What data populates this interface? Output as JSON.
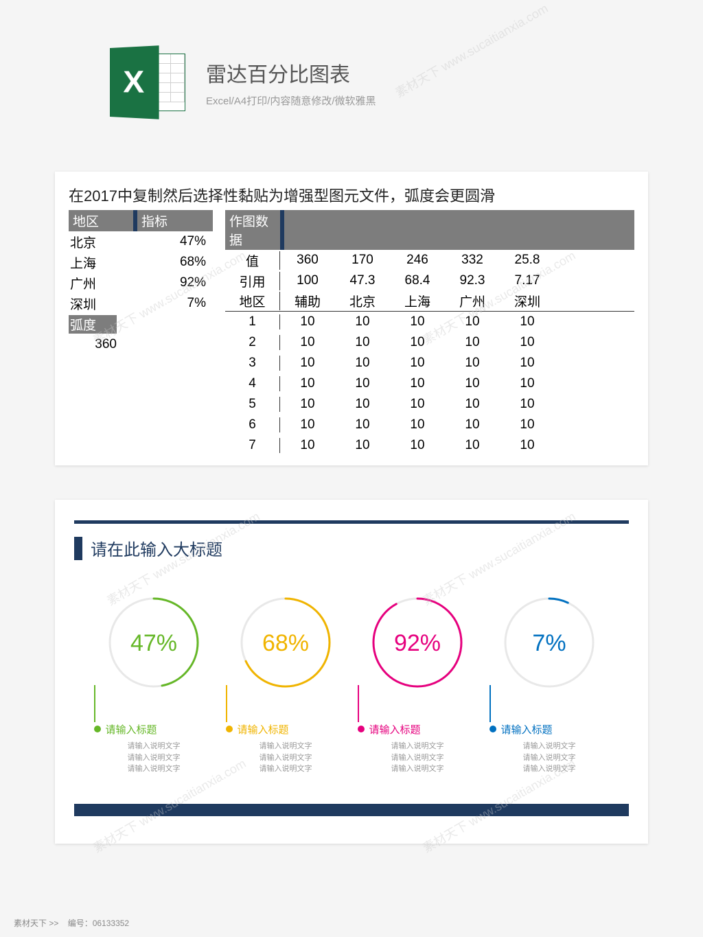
{
  "header": {
    "icon_letter": "X",
    "title": "雷达百分比图表",
    "subtitle": "Excel/A4打印/内容随意修改/微软雅黑"
  },
  "note": "在2017中复制然后选择性黏贴为增强型图元文件，弧度会更圆滑",
  "table_left": {
    "headers": [
      "地区",
      "指标"
    ],
    "rows": [
      [
        "北京",
        "47%"
      ],
      [
        "上海",
        "68%"
      ],
      [
        "广州",
        "92%"
      ],
      [
        "深圳",
        "7%"
      ]
    ],
    "sub_header": "弧度",
    "sub_value": "360"
  },
  "table_right": {
    "header": "作图数据",
    "row_value": [
      "值",
      "360",
      "170",
      "246",
      "332",
      "25.8"
    ],
    "row_ref": [
      "引用",
      "100",
      "47.3",
      "68.4",
      "92.3",
      "7.17"
    ],
    "row_region": [
      "地区",
      "辅助",
      "北京",
      "上海",
      "广州",
      "深圳"
    ],
    "num_rows": [
      [
        "1",
        "10",
        "10",
        "10",
        "10",
        "10"
      ],
      [
        "2",
        "10",
        "10",
        "10",
        "10",
        "10"
      ],
      [
        "3",
        "10",
        "10",
        "10",
        "10",
        "10"
      ],
      [
        "4",
        "10",
        "10",
        "10",
        "10",
        "10"
      ],
      [
        "5",
        "10",
        "10",
        "10",
        "10",
        "10"
      ],
      [
        "6",
        "10",
        "10",
        "10",
        "10",
        "10"
      ],
      [
        "7",
        "10",
        "10",
        "10",
        "10",
        "10"
      ]
    ]
  },
  "chart": {
    "main_title": "请在此输入大标题",
    "gauges": [
      {
        "pct": 47,
        "label_pct": "47%",
        "color": "#65b727",
        "title": "请输入标题"
      },
      {
        "pct": 68,
        "label_pct": "68%",
        "color": "#f0b400",
        "title": "请输入标题"
      },
      {
        "pct": 92,
        "label_pct": "92%",
        "color": "#e6007e",
        "title": "请输入标题"
      },
      {
        "pct": 7,
        "label_pct": "7%",
        "color": "#0070c0",
        "title": "请输入标题"
      }
    ],
    "desc_lines": [
      "请输入说明文字",
      "请输入说明文字",
      "请输入说明文字"
    ],
    "accent_color": "#1f3a5f",
    "track_color": "#e8e8e8",
    "ring_radius": 64,
    "ring_stroke": 3
  },
  "footer": {
    "left": "素材天下 >>",
    "right": "编号：06133352"
  },
  "watermark_text": "素材天下 www.sucaitianxia.com"
}
